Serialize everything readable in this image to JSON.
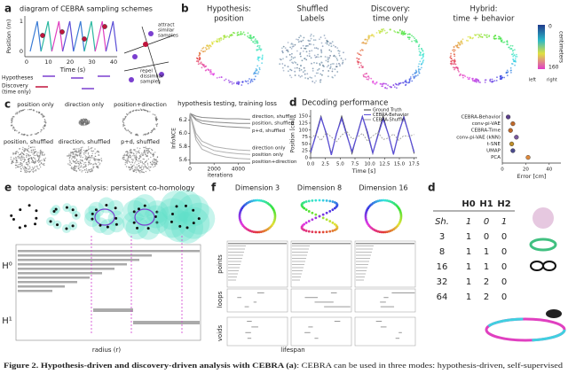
{
  "panels": {
    "a": {
      "label": "a",
      "title": "diagram of CEBRA sampling schemes",
      "y_label": "Position (m)",
      "y_ticks": [
        "1",
        "0"
      ],
      "x_ticks": [
        "0",
        "10",
        "20",
        "30",
        "40"
      ],
      "x_label": "Time (s)",
      "hypotheses": "Hypotheses",
      "discovery": [
        "Discovery",
        "(time only)"
      ],
      "attract": [
        "attract",
        "similar",
        "samples"
      ],
      "repel": [
        "repel",
        "dissimilar",
        "samples"
      ]
    },
    "b": {
      "label": "b",
      "titles": [
        [
          "Hypothesis:",
          "position"
        ],
        [
          "Shuffled",
          "Labels"
        ],
        [
          "Discovery:",
          "time only"
        ],
        [
          "Hybrid:",
          "time + behavior"
        ]
      ],
      "colorbar": {
        "top": "0",
        "bottom": "160",
        "unit": "centimeters",
        "left": "left",
        "right": "right"
      }
    },
    "c": {
      "label": "c",
      "embeddings": [
        "position only",
        "direction only",
        "position+direction",
        "position, shuffled",
        "direction, shuffled",
        "p+d, shuffled"
      ]
    },
    "d": {
      "label": "d"
    },
    "e": {
      "label": "e",
      "title": "topological data analysis: persistent co-homology",
      "h0": "H⁰",
      "h1": "H¹",
      "x_label": "radius (r)"
    },
    "f": {
      "label": "f",
      "titles": [
        "Dimension 3",
        "Dimension 8",
        "Dimension 16"
      ],
      "rows": [
        "points",
        "loops",
        "voids"
      ],
      "x_label": "lifespan"
    },
    "table": {
      "label": "d",
      "header": [
        "H0",
        "H1",
        "H2"
      ],
      "rows": [
        [
          "Sh.",
          "1",
          "0",
          "1"
        ],
        [
          "3",
          "1",
          "0",
          "0"
        ],
        [
          "8",
          "1",
          "1",
          "0"
        ],
        [
          "16",
          "1",
          "1",
          "0"
        ],
        [
          "32",
          "1",
          "2",
          "0"
        ],
        [
          "64",
          "1",
          "2",
          "0"
        ]
      ]
    },
    "caption": {
      "bold": "Figure 2. Hypothesis-driven and discovery-driven analysis with CEBRA (a)",
      "text": ": CEBRA can be used in three modes: hypothesis-driven, self-supervised"
    }
  },
  "chart_data": [
    {
      "type": "line",
      "title": "hypothesis testing, training loss",
      "x_label": "iterations",
      "y_label": "InfoNCE",
      "x": [
        0,
        500,
        1000,
        2000,
        3000,
        4000,
        5000
      ],
      "xlim": [
        0,
        5000
      ],
      "ylim": [
        5.55,
        6.3
      ],
      "xticks": [
        0,
        2000,
        4000
      ],
      "yticks": [
        5.6,
        5.8,
        {
          "value": 6,
          "label": "6.0"
        },
        6.2
      ],
      "series": [
        {
          "name": "direction, shuffled",
          "color": "#8a8a8a",
          "values": [
            6.3,
            6.26,
            6.24,
            6.23,
            6.22,
            6.22,
            6.21
          ]
        },
        {
          "name": "position, shuffled",
          "color": "#8a8a8a",
          "values": [
            6.3,
            6.22,
            6.19,
            6.17,
            6.16,
            6.15,
            6.15
          ]
        },
        {
          "name": "p+d, shuffled",
          "color": "#8a8a8a",
          "values": [
            6.3,
            6.2,
            6.15,
            6.12,
            6.1,
            6.09,
            6.08
          ]
        },
        {
          "name": "direction only",
          "color": "#b0b0b0",
          "values": [
            6.3,
            6.0,
            5.88,
            5.8,
            5.77,
            5.75,
            5.74
          ]
        },
        {
          "name": "position only",
          "color": "#b0b0b0",
          "values": [
            6.3,
            5.95,
            5.82,
            5.74,
            5.71,
            5.69,
            5.68
          ]
        },
        {
          "name": "position+direction",
          "color": "#b0b0b0",
          "values": [
            6.3,
            5.9,
            5.76,
            5.68,
            5.64,
            5.62,
            5.61
          ]
        }
      ]
    },
    {
      "type": "line",
      "title": "Decoding performance",
      "x_label": "Time [s]",
      "y_label": "Position [cm]",
      "x": [
        0,
        0.875,
        1.75,
        2.625,
        3.5,
        4.375,
        5.25,
        6.125,
        7,
        7.875,
        8.75,
        9.625,
        10.5,
        11.375,
        12.25,
        13.125,
        14,
        14.875,
        15.75,
        16.625,
        17.5
      ],
      "xlim": [
        0,
        18
      ],
      "ylim": [
        0,
        160
      ],
      "xticks": [
        {
          "value": 0,
          "label": "0.0"
        },
        2.5,
        {
          "value": 5,
          "label": "5.0"
        },
        7.5,
        {
          "value": 10,
          "label": "10.0"
        },
        12.5,
        {
          "value": 15,
          "label": "15.0"
        },
        17.5
      ],
      "yticks": [
        0,
        25,
        50,
        75,
        100,
        125,
        150
      ],
      "series": [
        {
          "name": "Ground Truth",
          "color": "#333333",
          "values": [
            15,
            85,
            150,
            85,
            15,
            85,
            150,
            85,
            15,
            85,
            150,
            85,
            15,
            85,
            150,
            85,
            15,
            85,
            150,
            85,
            15
          ]
        },
        {
          "name": "CEBRA-Behavior",
          "color": "#5b4fd6",
          "values": [
            20,
            80,
            145,
            90,
            10,
            88,
            142,
            80,
            22,
            82,
            148,
            92,
            18,
            80,
            140,
            86,
            12,
            90,
            146,
            84,
            20
          ]
        },
        {
          "name": "CEBRA-Shuffle",
          "color": "#9a9a9a",
          "dash": true,
          "values": [
            70,
            85,
            62,
            90,
            75,
            58,
            82,
            95,
            68,
            74,
            88,
            60,
            79,
            92,
            66,
            71,
            86,
            63,
            80,
            77,
            84
          ]
        }
      ]
    },
    {
      "type": "dot",
      "x_label": "Error [cm]",
      "categories": [
        "CEBRA-Behavior",
        "conv-pi-VAE",
        "CEBRA-Time",
        "conv-pi-VAE (kNN)",
        "t-SNE",
        "UMAP",
        "PCA"
      ],
      "values": [
        5,
        9,
        7,
        12,
        8,
        9,
        22
      ],
      "colors": [
        "#5b3f8c",
        "#c06a2b",
        "#c06a2b",
        "#7a5a9e",
        "#c0902b",
        "#4a4a8c",
        "#e08a3c"
      ],
      "xlim": [
        0,
        50
      ],
      "xticks": [
        0,
        20,
        40
      ]
    }
  ]
}
